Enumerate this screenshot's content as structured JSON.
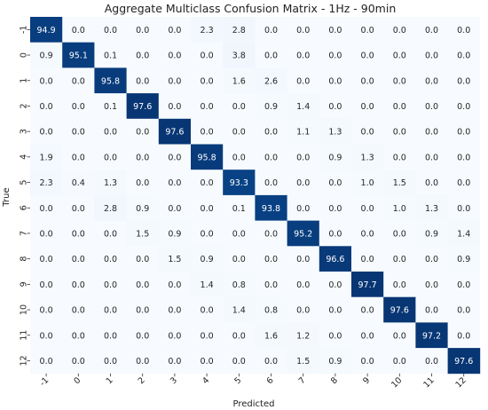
{
  "chart_data": {
    "type": "heatmap",
    "title": "Aggregate Multiclass Confusion Matrix - 1Hz - 90min",
    "xlabel": "Predicted",
    "ylabel": "True",
    "x_categories": [
      "-1",
      "0",
      "1",
      "2",
      "3",
      "4",
      "5",
      "6",
      "7",
      "8",
      "9",
      "10",
      "11",
      "12"
    ],
    "y_categories": [
      "-1",
      "0",
      "1",
      "2",
      "3",
      "4",
      "5",
      "6",
      "7",
      "8",
      "9",
      "10",
      "11",
      "12"
    ],
    "values": [
      [
        94.9,
        0.0,
        0.0,
        0.0,
        0.0,
        2.3,
        2.8,
        0.0,
        0.0,
        0.0,
        0.0,
        0.0,
        0.0,
        0.0
      ],
      [
        0.9,
        95.1,
        0.1,
        0.0,
        0.0,
        0.0,
        3.8,
        0.0,
        0.0,
        0.0,
        0.0,
        0.0,
        0.0,
        0.0
      ],
      [
        0.0,
        0.0,
        95.8,
        0.0,
        0.0,
        0.0,
        1.6,
        2.6,
        0.0,
        0.0,
        0.0,
        0.0,
        0.0,
        0.0
      ],
      [
        0.0,
        0.0,
        0.1,
        97.6,
        0.0,
        0.0,
        0.0,
        0.9,
        1.4,
        0.0,
        0.0,
        0.0,
        0.0,
        0.0
      ],
      [
        0.0,
        0.0,
        0.0,
        0.0,
        97.6,
        0.0,
        0.0,
        0.0,
        1.1,
        1.3,
        0.0,
        0.0,
        0.0,
        0.0
      ],
      [
        1.9,
        0.0,
        0.0,
        0.0,
        0.0,
        95.8,
        0.0,
        0.0,
        0.0,
        0.9,
        1.3,
        0.0,
        0.0,
        0.0
      ],
      [
        2.3,
        0.4,
        1.3,
        0.0,
        0.0,
        0.0,
        93.3,
        0.0,
        0.0,
        0.0,
        1.0,
        1.5,
        0.0,
        0.0
      ],
      [
        0.0,
        0.0,
        2.8,
        0.9,
        0.0,
        0.0,
        0.1,
        93.8,
        0.0,
        0.0,
        0.0,
        1.0,
        1.3,
        0.0
      ],
      [
        0.0,
        0.0,
        0.0,
        1.5,
        0.9,
        0.0,
        0.0,
        0.0,
        95.2,
        0.0,
        0.0,
        0.0,
        0.9,
        1.4
      ],
      [
        0.0,
        0.0,
        0.0,
        0.0,
        1.5,
        0.9,
        0.0,
        0.0,
        0.0,
        96.6,
        0.0,
        0.0,
        0.0,
        0.9
      ],
      [
        0.0,
        0.0,
        0.0,
        0.0,
        0.0,
        1.4,
        0.8,
        0.0,
        0.0,
        0.0,
        97.7,
        0.0,
        0.0,
        0.0
      ],
      [
        0.0,
        0.0,
        0.0,
        0.0,
        0.0,
        0.0,
        1.4,
        0.8,
        0.0,
        0.0,
        0.0,
        97.6,
        0.0,
        0.0
      ],
      [
        0.0,
        0.0,
        0.0,
        0.0,
        0.0,
        0.0,
        0.0,
        1.6,
        1.2,
        0.0,
        0.0,
        0.0,
        97.2,
        0.0
      ],
      [
        0.0,
        0.0,
        0.0,
        0.0,
        0.0,
        0.0,
        0.0,
        0.0,
        1.5,
        0.9,
        0.0,
        0.0,
        0.0,
        97.6
      ]
    ],
    "value_range": [
      0,
      100
    ],
    "colormap": "Blues",
    "colors": {
      "low": "#f7fbff",
      "mid": "#6baed6",
      "high": "#08306b"
    },
    "colorbar": false,
    "grid": false
  }
}
